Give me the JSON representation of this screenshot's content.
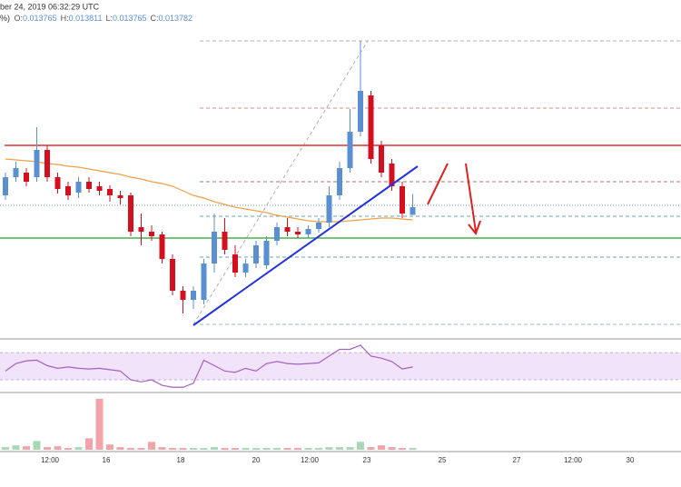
{
  "chart_data": {
    "type": "candlestick",
    "header": {
      "timestamp": "ber 24, 2019 06:32:29 UTC",
      "prefix": "%)",
      "labels": [
        "O:",
        "H:",
        "L:",
        "C:"
      ]
    },
    "up_color": "#5a8fd2",
    "down_color": "#d4101f",
    "ylim": [
      0.013494,
      0.014238
    ],
    "open": [
      0.013808,
      0.013848,
      0.013858,
      0.013848,
      0.013908,
      0.013848,
      0.013828,
      0.013814,
      0.013838,
      0.013828,
      0.013822,
      0.013808,
      0.013808,
      0.013738,
      0.013728,
      0.013722,
      0.013668,
      0.013598,
      0.013578,
      0.013578,
      0.013658,
      0.013728,
      0.013678,
      0.013638,
      0.013658,
      0.013654,
      0.013708,
      0.013738,
      0.013728,
      0.013722,
      0.013734,
      0.013748,
      0.013808,
      0.013868,
      0.013948,
      0.014028,
      0.013918,
      0.013878,
      0.013828,
      0.013765
    ],
    "high": [
      0.013858,
      0.013882,
      0.013868,
      0.013958,
      0.013918,
      0.013858,
      0.013838,
      0.013848,
      0.013848,
      0.013838,
      0.01383,
      0.013818,
      0.013814,
      0.013768,
      0.013742,
      0.013728,
      0.013678,
      0.013608,
      0.013608,
      0.013668,
      0.013768,
      0.013758,
      0.013698,
      0.013668,
      0.013708,
      0.013718,
      0.013748,
      0.013758,
      0.013738,
      0.013742,
      0.013758,
      0.013828,
      0.013882,
      0.013998,
      0.014148,
      0.014038,
      0.013928,
      0.013888,
      0.013838,
      0.013811
    ],
    "low": [
      0.013798,
      0.013838,
      0.013828,
      0.013838,
      0.013838,
      0.013812,
      0.013798,
      0.013802,
      0.013814,
      0.013808,
      0.013794,
      0.013788,
      0.013718,
      0.013698,
      0.013708,
      0.013658,
      0.013588,
      0.013548,
      0.013558,
      0.013568,
      0.013638,
      0.013678,
      0.013628,
      0.013628,
      0.013648,
      0.013646,
      0.013698,
      0.013718,
      0.013714,
      0.013714,
      0.013726,
      0.013738,
      0.013798,
      0.013858,
      0.013938,
      0.013878,
      0.013848,
      0.013818,
      0.013758,
      0.013765
    ],
    "close": [
      0.013848,
      0.013868,
      0.013838,
      0.013908,
      0.013848,
      0.013822,
      0.013808,
      0.013838,
      0.013822,
      0.013818,
      0.013808,
      0.013802,
      0.013728,
      0.013728,
      0.013718,
      0.013668,
      0.013598,
      0.013578,
      0.013598,
      0.013658,
      0.013728,
      0.013688,
      0.013638,
      0.013658,
      0.013698,
      0.013708,
      0.013738,
      0.013728,
      0.013722,
      0.013734,
      0.013748,
      0.013808,
      0.013868,
      0.013948,
      0.014038,
      0.013888,
      0.013858,
      0.013828,
      0.013768,
      0.013782
    ],
    "ma": {
      "color": "#f0a04a",
      "values": [
        0.013888,
        0.013886,
        0.013884,
        0.013882,
        0.013878,
        0.013876,
        0.013872,
        0.01387,
        0.013866,
        0.013862,
        0.013858,
        0.013854,
        0.013848,
        0.013844,
        0.013838,
        0.013834,
        0.013828,
        0.013818,
        0.013808,
        0.013802,
        0.013794,
        0.013788,
        0.013782,
        0.013778,
        0.013774,
        0.01377,
        0.013764,
        0.01376,
        0.013756,
        0.013752,
        0.01375,
        0.01375,
        0.01375,
        0.013752,
        0.013754,
        0.013756,
        0.013758,
        0.013758,
        0.013756,
        0.013754
      ]
    },
    "rsi": {
      "color": "#a55fc4",
      "band": [
        30,
        70
      ],
      "ylim": [
        14,
        85
      ],
      "values": [
        43,
        54,
        58,
        59,
        51,
        47,
        49,
        47,
        46,
        47,
        45,
        43,
        30,
        27,
        30,
        22,
        19,
        19,
        25,
        59,
        51,
        43,
        41,
        47,
        43,
        54,
        57,
        54,
        53,
        54,
        55,
        65,
        75,
        75,
        81,
        65,
        62,
        57,
        46,
        49
      ]
    },
    "volume": {
      "ylim": [
        0,
        60
      ],
      "values": [
        3,
        5,
        4,
        10,
        3,
        4,
        2,
        3,
        13,
        58,
        6,
        3,
        2,
        2,
        9,
        3,
        2,
        2,
        2,
        2,
        3,
        2,
        2,
        2,
        2,
        2,
        2,
        2,
        2,
        2,
        2,
        3,
        3,
        3,
        9,
        3,
        5,
        3,
        2,
        2
      ]
    },
    "x_labels": [
      "12:00",
      "16",
      "18",
      "20",
      "12:00",
      "23",
      "25",
      "27",
      "12:00",
      "30"
    ]
  }
}
